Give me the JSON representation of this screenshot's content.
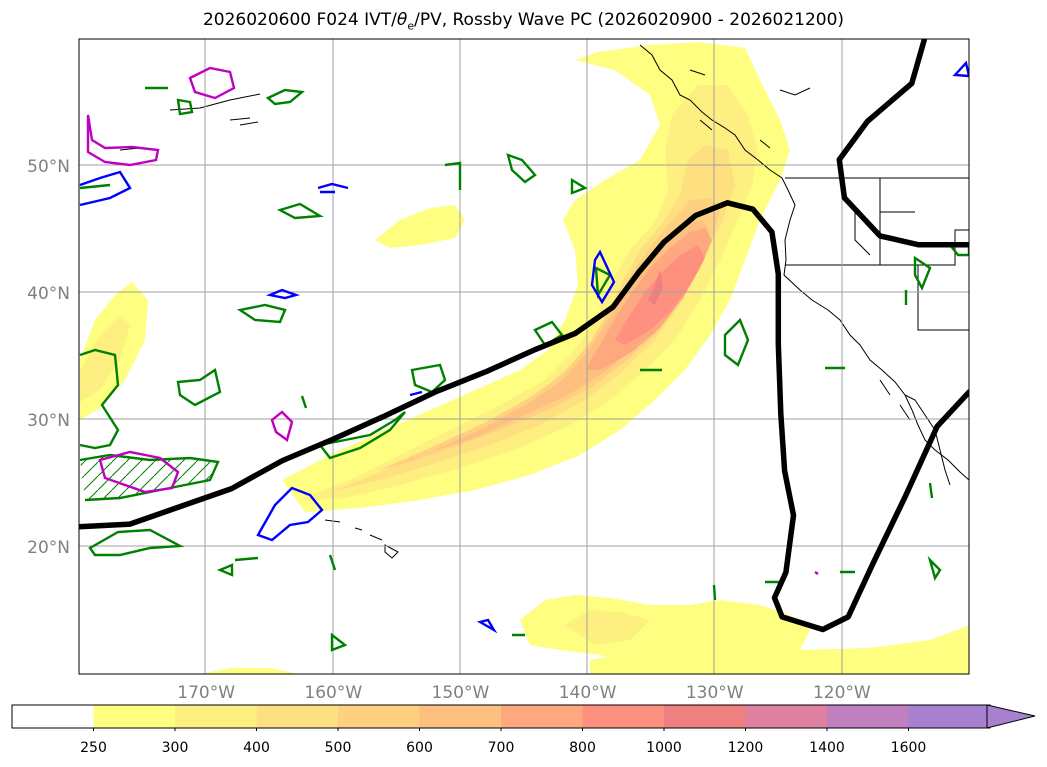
{
  "title_prefix": "2026020600 F024 IVT/",
  "title_theta": "θ",
  "title_sub": "e",
  "title_suffix": "/PV, Rossby Wave PC (2026020900 - 2026021200)",
  "chart_data": {
    "type": "map",
    "lon_range": [
      -180,
      -110
    ],
    "lat_range": [
      10,
      60
    ],
    "lon_ticks": [
      -170,
      -160,
      -150,
      -140,
      -130,
      -120
    ],
    "lon_tick_labels": [
      "170°W",
      "160°W",
      "150°W",
      "140°W",
      "130°W",
      "120°W"
    ],
    "lat_ticks": [
      20,
      30,
      40,
      50
    ],
    "lat_tick_labels": [
      "20°N",
      "30°N",
      "40°N",
      "50°N"
    ],
    "ivt_levels": [
      250,
      300,
      400,
      500,
      600,
      700,
      800,
      1000,
      1200,
      1400,
      1600
    ],
    "ivt_level_labels": [
      "250",
      "300",
      "400",
      "500",
      "600",
      "700",
      "800",
      "1000",
      "1200",
      "1400",
      "1600"
    ],
    "ivt_colors": [
      "#ffffff",
      "#fefe80",
      "#fef080",
      "#fee080",
      "#fed080",
      "#fec080",
      "#fea880",
      "#fe9080",
      "#f08080",
      "#e080a0",
      "#c080c0",
      "#a880d0"
    ],
    "colorbar_extend": "max",
    "contour_colors": {
      "rossby_wave": "#000000",
      "theta_e": "#008000",
      "pv_positive": "#c000c0",
      "pv_negative": "#0000ff"
    },
    "rossby_wave_line": [
      [
        -180,
        21.6
      ],
      [
        -176,
        21.8
      ],
      [
        -172,
        23.2
      ],
      [
        -168,
        24.6
      ],
      [
        -164,
        26.8
      ],
      [
        -160,
        28.5
      ],
      [
        -156,
        30.3
      ],
      [
        -152,
        32.2
      ],
      [
        -148,
        33.8
      ],
      [
        -144,
        35.6
      ],
      [
        -141,
        36.8
      ],
      [
        -138,
        38.9
      ],
      [
        -136,
        41.6
      ],
      [
        -134,
        44.0
      ],
      [
        -131.5,
        46.1
      ],
      [
        -129,
        47.1
      ],
      [
        -127,
        46.6
      ],
      [
        -125.5,
        44.8
      ],
      [
        -125,
        41.5
      ],
      [
        -125,
        36.0
      ],
      [
        -124.8,
        30.5
      ],
      [
        -124.5,
        26.0
      ],
      [
        -123.8,
        22.5
      ],
      [
        -124.4,
        18.0
      ],
      [
        -125.3,
        16.0
      ],
      [
        -124.7,
        14.5
      ],
      [
        -121.5,
        13.5
      ],
      [
        -119.5,
        14.5
      ],
      [
        -117.5,
        18.8
      ],
      [
        -115,
        24.0
      ],
      [
        -112.5,
        29.5
      ],
      [
        -110,
        32.2
      ]
    ],
    "rossby_wave_line_upper": [
      [
        -113.5,
        60
      ],
      [
        -114.5,
        56.5
      ],
      [
        -118,
        53.5
      ],
      [
        -120.2,
        50.5
      ],
      [
        -119.8,
        47.5
      ],
      [
        -117,
        44.5
      ],
      [
        -114,
        43.8
      ],
      [
        -110,
        43.8
      ]
    ]
  }
}
